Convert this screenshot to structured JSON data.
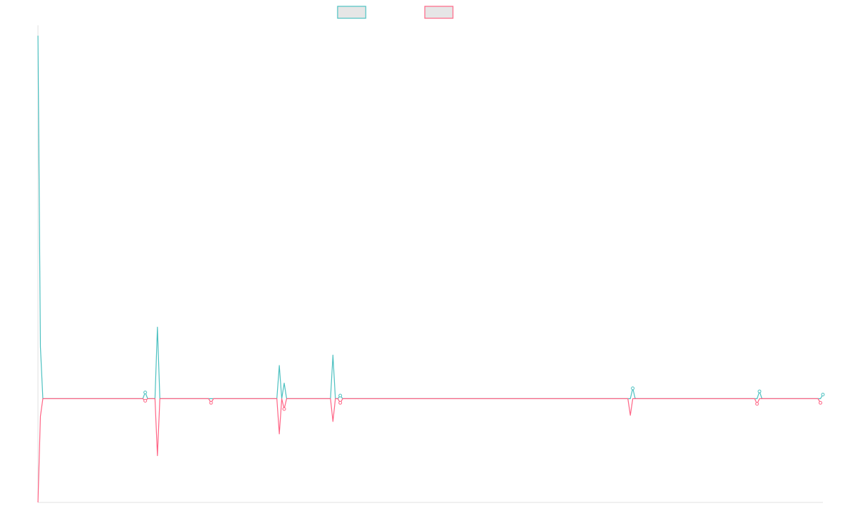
{
  "chart_data": {
    "type": "line",
    "title": "",
    "xlabel": "",
    "ylabel": "",
    "grid": false,
    "legend": "top-center",
    "colors": {
      "series_a": "#4bc0c0",
      "series_b": "#ff6384",
      "legend_fill": "#e6e6e6",
      "axis": "#e0e0e0"
    },
    "ylim": [
      -1,
      3.6
    ],
    "series": [
      {
        "values": [
          3.5,
          0.5,
          0.0,
          0.0,
          0.0,
          0.0,
          0.0,
          0.0,
          0.0,
          0.0,
          0.0,
          0.0,
          0.0,
          0.0,
          0.0,
          0.0,
          0.0,
          0.0,
          0.0,
          0.0,
          0.0,
          0.0,
          0.0,
          0.0,
          0.0,
          0.0,
          0.0,
          0.0,
          0.0,
          0.0,
          0.0,
          0.0,
          0.0,
          0.0,
          0.0,
          0.0,
          0.0,
          0.0,
          0.0,
          0.0,
          0.0,
          0.0,
          0.0,
          0.0,
          0.06,
          0.0,
          0.0,
          0.0,
          0.0,
          0.69,
          0.0,
          0.0,
          0.0,
          0.0,
          0.0,
          0.0,
          0.0,
          0.0,
          0.0,
          0.0,
          0.0,
          0.0,
          0.0,
          0.0,
          0.0,
          0.0,
          0.0,
          0.0,
          0.0,
          0.0,
          0.0,
          0.0,
          0.0,
          0.0,
          0.0,
          0.0,
          0.0,
          0.0,
          0.0,
          0.0,
          0.0,
          0.0,
          0.0,
          0.0,
          0.0,
          0.0,
          0.0,
          0.0,
          0.0,
          0.0,
          0.0,
          0.0,
          0.0,
          0.0,
          0.0,
          0.0,
          0.0,
          0.0,
          0.0,
          0.32,
          0.0,
          0.15,
          0.0,
          0.0,
          0.0,
          0.0,
          0.0,
          0.0,
          0.0,
          0.0,
          0.0,
          0.0,
          0.0,
          0.0,
          0.0,
          0.0,
          0.0,
          0.0,
          0.0,
          0.0,
          0.0,
          0.42,
          0.0,
          0.0,
          0.03,
          0.0,
          0.0,
          0.0,
          0.0,
          0.0,
          0.0,
          0.0,
          0.0,
          0.0,
          0.0,
          0.0,
          0.0,
          0.0,
          0.0,
          0.0,
          0.0,
          0.0,
          0.0,
          0.0,
          0.0,
          0.0,
          0.0,
          0.0,
          0.0,
          0.0,
          0.0,
          0.0,
          0.0,
          0.0,
          0.0,
          0.0,
          0.0,
          0.0,
          0.0,
          0.0,
          0.0,
          0.0,
          0.0,
          0.0,
          0.0,
          0.0,
          0.0,
          0.0,
          0.0,
          0.0,
          0.0,
          0.0,
          0.0,
          0.0,
          0.0,
          0.0,
          0.0,
          0.0,
          0.0,
          0.0,
          0.0,
          0.0,
          0.0,
          0.0,
          0.0,
          0.0,
          0.0,
          0.0,
          0.0,
          0.0,
          0.0,
          0.0,
          0.0,
          0.0,
          0.0,
          0.0,
          0.0,
          0.0,
          0.0,
          0.0,
          0.0,
          0.0,
          0.0,
          0.0,
          0.0,
          0.0,
          0.0,
          0.0,
          0.0,
          0.0,
          0.0,
          0.0,
          0.0,
          0.0,
          0.0,
          0.0,
          0.0,
          0.0,
          0.0,
          0.0,
          0.0,
          0.0,
          0.0,
          0.0,
          0.0,
          0.0,
          0.0,
          0.0,
          0.0,
          0.0,
          0.0,
          0.0,
          0.0,
          0.0,
          0.0,
          0.0,
          0.0,
          0.0,
          0.0,
          0.0,
          0.0,
          0.0,
          0.0,
          0.0,
          0.1,
          0.0,
          0.0,
          0.0,
          0.0,
          0.0,
          0.0,
          0.0,
          0.0,
          0.0,
          0.0,
          0.0,
          0.0,
          0.0,
          0.0,
          0.0,
          0.0,
          0.0,
          0.0,
          0.0,
          0.0,
          0.0,
          0.0,
          0.0,
          0.0,
          0.0,
          0.0,
          0.0,
          0.0,
          0.0,
          0.0,
          0.0,
          0.0,
          0.0,
          0.0,
          0.0,
          0.0,
          0.0,
          0.0,
          0.0,
          0.0,
          0.0,
          0.0,
          0.0,
          0.0,
          0.0,
          0.0,
          0.0,
          0.0,
          0.0,
          0.0,
          0.0,
          0.07,
          0.0,
          0.0,
          0.0,
          0.0,
          0.0,
          0.0,
          0.0,
          0.0,
          0.0,
          0.0,
          0.0,
          0.0,
          0.0,
          0.0,
          0.0,
          0.0,
          0.0,
          0.0,
          0.0,
          0.0,
          0.0,
          0.0,
          0.0,
          0.0,
          0.0,
          0.04
        ],
        "color": "#4bc0c0"
      },
      {
        "values": [
          -1.0,
          -0.17,
          0.0,
          0.0,
          0.0,
          0.0,
          0.0,
          0.0,
          0.0,
          0.0,
          0.0,
          0.0,
          0.0,
          0.0,
          0.0,
          0.0,
          0.0,
          0.0,
          0.0,
          0.0,
          0.0,
          0.0,
          0.0,
          0.0,
          0.0,
          0.0,
          0.0,
          0.0,
          0.0,
          0.0,
          0.0,
          0.0,
          0.0,
          0.0,
          0.0,
          0.0,
          0.0,
          0.0,
          0.0,
          0.0,
          0.0,
          0.0,
          0.0,
          0.0,
          -0.02,
          0.0,
          0.0,
          0.0,
          0.0,
          -0.55,
          0.0,
          0.0,
          0.0,
          0.0,
          0.0,
          0.0,
          0.0,
          0.0,
          0.0,
          0.0,
          0.0,
          0.0,
          0.0,
          0.0,
          0.0,
          0.0,
          0.0,
          0.0,
          0.0,
          0.0,
          0.0,
          -0.04,
          0.0,
          0.0,
          0.0,
          0.0,
          0.0,
          0.0,
          0.0,
          0.0,
          0.0,
          0.0,
          0.0,
          0.0,
          0.0,
          0.0,
          0.0,
          0.0,
          0.0,
          0.0,
          0.0,
          0.0,
          0.0,
          0.0,
          0.0,
          0.0,
          0.0,
          0.0,
          0.0,
          -0.34,
          0.0,
          -0.1,
          0.0,
          0.0,
          0.0,
          0.0,
          0.0,
          0.0,
          0.0,
          0.0,
          0.0,
          0.0,
          0.0,
          0.0,
          0.0,
          0.0,
          0.0,
          0.0,
          0.0,
          0.0,
          0.0,
          -0.22,
          0.0,
          0.0,
          -0.04,
          0.0,
          0.0,
          0.0,
          0.0,
          0.0,
          0.0,
          0.0,
          0.0,
          0.0,
          0.0,
          0.0,
          0.0,
          0.0,
          0.0,
          0.0,
          0.0,
          0.0,
          0.0,
          0.0,
          0.0,
          0.0,
          0.0,
          0.0,
          0.0,
          0.0,
          0.0,
          0.0,
          0.0,
          0.0,
          0.0,
          0.0,
          0.0,
          0.0,
          0.0,
          0.0,
          0.0,
          0.0,
          0.0,
          0.0,
          0.0,
          0.0,
          0.0,
          0.0,
          0.0,
          0.0,
          0.0,
          0.0,
          0.0,
          0.0,
          0.0,
          0.0,
          0.0,
          0.0,
          0.0,
          0.0,
          0.0,
          0.0,
          0.0,
          0.0,
          0.0,
          0.0,
          0.0,
          0.0,
          0.0,
          0.0,
          0.0,
          0.0,
          0.0,
          0.0,
          0.0,
          0.0,
          0.0,
          0.0,
          0.0,
          0.0,
          0.0,
          0.0,
          0.0,
          0.0,
          0.0,
          0.0,
          0.0,
          0.0,
          0.0,
          0.0,
          0.0,
          0.0,
          0.0,
          0.0,
          0.0,
          0.0,
          0.0,
          0.0,
          0.0,
          0.0,
          0.0,
          0.0,
          0.0,
          0.0,
          0.0,
          0.0,
          0.0,
          0.0,
          0.0,
          0.0,
          0.0,
          0.0,
          0.0,
          0.0,
          0.0,
          0.0,
          0.0,
          0.0,
          0.0,
          0.0,
          0.0,
          0.0,
          0.0,
          -0.16,
          0.0,
          0.0,
          0.0,
          0.0,
          0.0,
          0.0,
          0.0,
          0.0,
          0.0,
          0.0,
          0.0,
          0.0,
          0.0,
          0.0,
          0.0,
          0.0,
          0.0,
          0.0,
          0.0,
          0.0,
          0.0,
          0.0,
          0.0,
          0.0,
          0.0,
          0.0,
          0.0,
          0.0,
          0.0,
          0.0,
          0.0,
          0.0,
          0.0,
          0.0,
          0.0,
          0.0,
          0.0,
          0.0,
          0.0,
          0.0,
          0.0,
          0.0,
          0.0,
          0.0,
          0.0,
          0.0,
          0.0,
          0.0,
          0.0,
          0.0,
          0.0,
          -0.05,
          0.0,
          0.0,
          0.0,
          0.0,
          0.0,
          0.0,
          0.0,
          0.0,
          0.0,
          0.0,
          0.0,
          0.0,
          0.0,
          0.0,
          0.0,
          0.0,
          0.0,
          0.0,
          0.0,
          0.0,
          0.0,
          0.0,
          0.0,
          0.0,
          0.0,
          -0.04
        ],
        "color": "#ff6384"
      }
    ]
  }
}
